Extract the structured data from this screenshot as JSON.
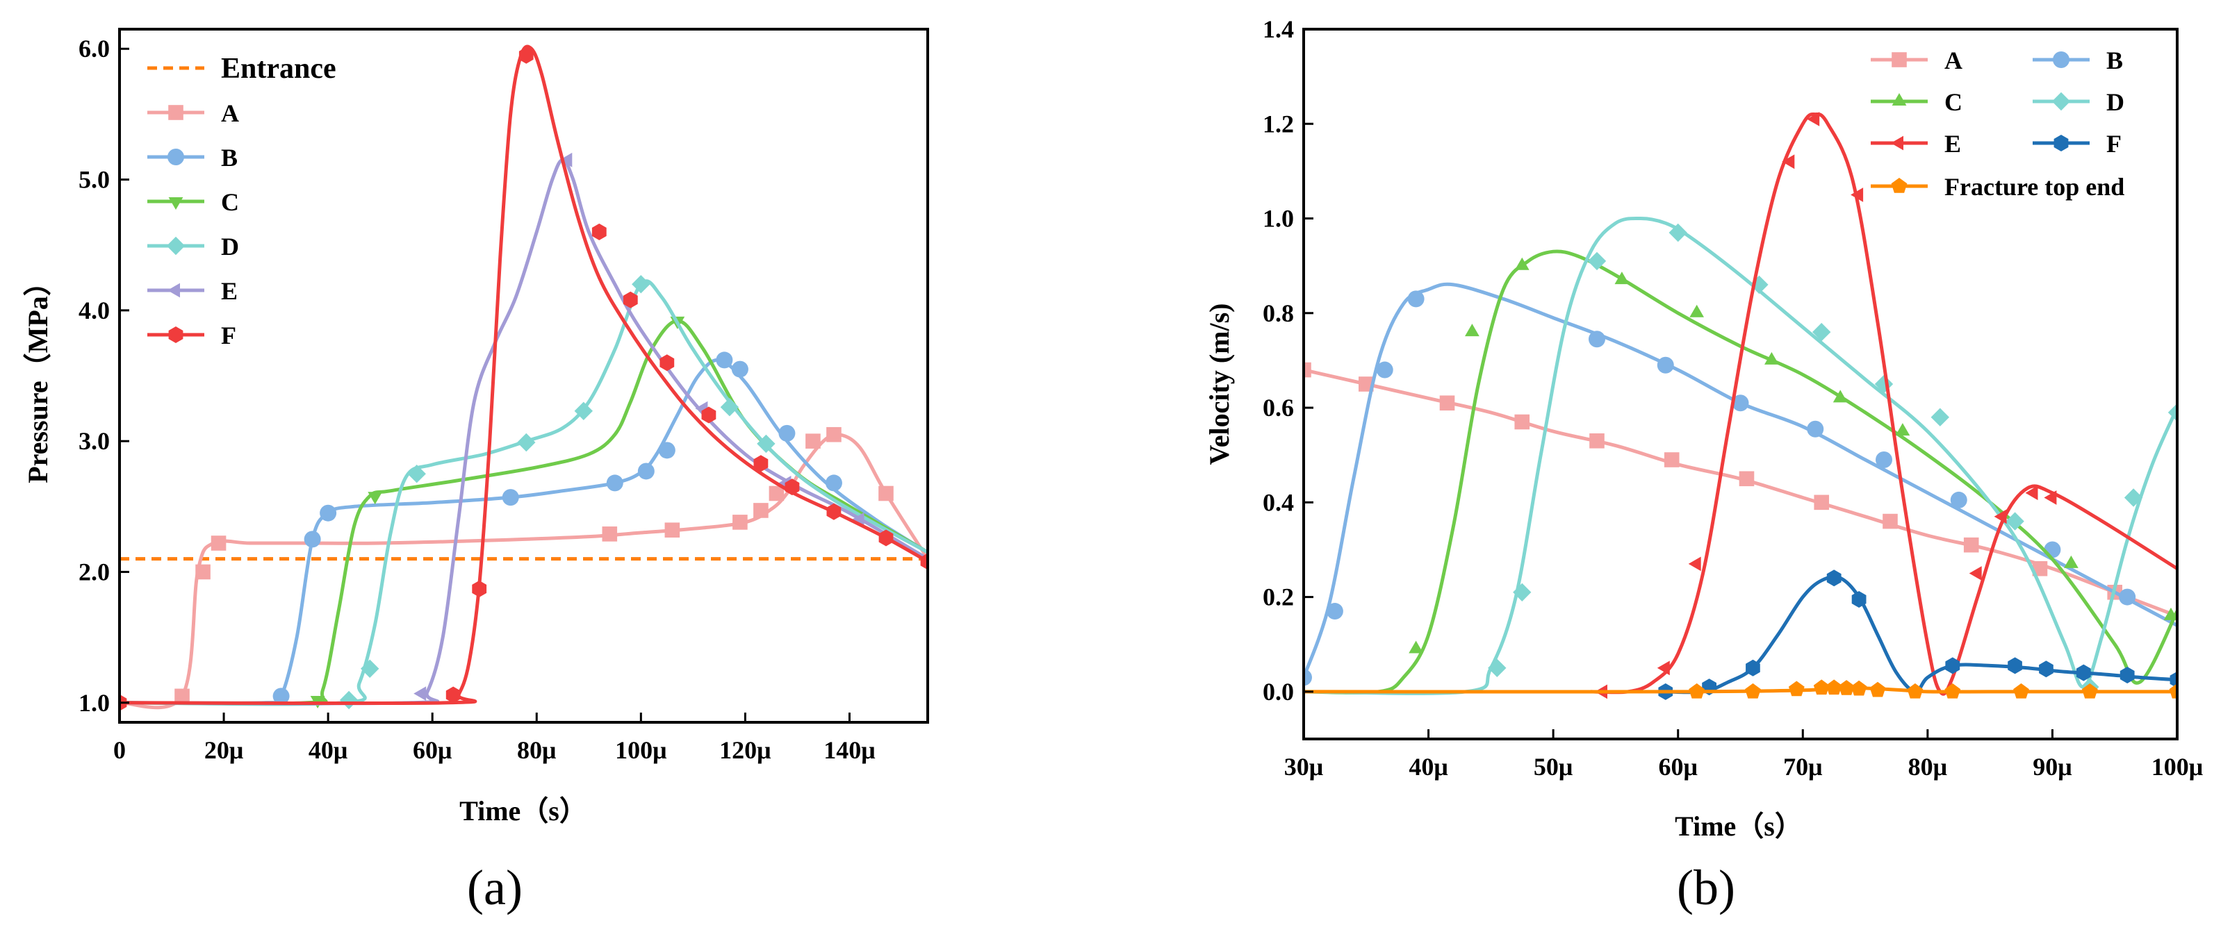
{
  "chart_data": [
    {
      "type": "line",
      "panel": "a",
      "caption": "(a)",
      "title": "",
      "xlabel": "Time（s）",
      "ylabel": "Pressure（MPa）",
      "xlim": [
        0,
        155
      ],
      "ylim": [
        0.85,
        6.15
      ],
      "xticks": [
        0,
        20,
        40,
        60,
        80,
        100,
        120,
        140
      ],
      "xtick_labels": [
        "0",
        "20μ",
        "40μ",
        "60μ",
        "80μ",
        "100μ",
        "120μ",
        "140μ"
      ],
      "yticks": [
        1,
        2,
        3,
        4,
        5,
        6
      ],
      "ytick_labels": [
        "1.0",
        "2.0",
        "3.0",
        "4.0",
        "5.0",
        "6.0"
      ],
      "reference": {
        "name": "Entrance",
        "value": 2.1,
        "color": "#FF7F0E"
      },
      "series": [
        {
          "name": "A",
          "color": "#F4A3A3",
          "marker": "square",
          "x": [
            0,
            12,
            15,
            18,
            25,
            35,
            50,
            70,
            90,
            100,
            110,
            120,
            125,
            128,
            131,
            135,
            138,
            142,
            147,
            155
          ],
          "y": [
            1.0,
            1.05,
            2.0,
            2.22,
            2.22,
            2.22,
            2.22,
            2.24,
            2.27,
            2.3,
            2.33,
            2.38,
            2.48,
            2.6,
            2.8,
            3.0,
            3.05,
            2.95,
            2.6,
            2.1
          ],
          "marker_x": [
            12,
            16,
            19,
            94,
            106,
            119,
            123,
            126,
            133,
            137,
            147
          ],
          "marker_y": [
            1.05,
            2.0,
            2.22,
            2.29,
            2.32,
            2.38,
            2.47,
            2.6,
            3.0,
            3.05,
            2.6
          ]
        },
        {
          "name": "B",
          "color": "#7FB2E5",
          "marker": "circle",
          "x": [
            0,
            28,
            31,
            34,
            37,
            40,
            45,
            60,
            75,
            85,
            95,
            100,
            103,
            107,
            111,
            115,
            120,
            127,
            135,
            145,
            155
          ],
          "y": [
            1.0,
            1.0,
            1.05,
            1.5,
            2.25,
            2.45,
            2.5,
            2.53,
            2.57,
            2.62,
            2.68,
            2.76,
            2.9,
            3.2,
            3.5,
            3.62,
            3.45,
            3.05,
            2.7,
            2.4,
            2.15
          ],
          "marker_x": [
            31,
            37,
            40,
            75,
            95,
            101,
            105,
            116,
            119,
            128,
            137
          ],
          "marker_y": [
            1.05,
            2.25,
            2.45,
            2.57,
            2.68,
            2.77,
            2.93,
            3.62,
            3.55,
            3.06,
            2.68
          ]
        },
        {
          "name": "C",
          "color": "#6FCB4A",
          "marker": "triangle-down",
          "x": [
            0,
            36,
            39,
            42,
            45,
            48,
            52,
            65,
            80,
            90,
            95,
            98,
            102,
            107,
            112,
            120,
            130,
            140,
            155
          ],
          "y": [
            1.0,
            1.0,
            1.1,
            1.7,
            2.35,
            2.58,
            2.62,
            2.7,
            2.8,
            2.9,
            3.05,
            3.3,
            3.7,
            3.92,
            3.7,
            3.15,
            2.75,
            2.5,
            2.15
          ],
          "marker_x": [
            38,
            49,
            107
          ],
          "marker_y": [
            1.02,
            2.58,
            3.92
          ]
        },
        {
          "name": "D",
          "color": "#7FD6D1",
          "marker": "diamond",
          "x": [
            0,
            43,
            46,
            49,
            52,
            55,
            60,
            70,
            78,
            85,
            90,
            95,
            100,
            104,
            110,
            118,
            127,
            137,
            155
          ],
          "y": [
            1.0,
            1.0,
            1.15,
            1.6,
            2.3,
            2.73,
            2.82,
            2.9,
            3.0,
            3.1,
            3.3,
            3.7,
            4.2,
            4.1,
            3.7,
            3.25,
            2.85,
            2.55,
            2.15
          ],
          "marker_x": [
            44,
            48,
            57,
            78,
            89,
            100,
            117,
            124
          ],
          "marker_y": [
            1.02,
            1.26,
            2.75,
            2.99,
            3.23,
            4.2,
            3.26,
            2.98
          ]
        },
        {
          "name": "E",
          "color": "#A29BD6",
          "marker": "triangle-left",
          "x": [
            0,
            56,
            59,
            62,
            65,
            68,
            72,
            76,
            80,
            83,
            85,
            87,
            90,
            95,
            100,
            110,
            120,
            130,
            140,
            155
          ],
          "y": [
            1.0,
            1.0,
            1.08,
            1.5,
            2.4,
            3.3,
            3.75,
            4.1,
            4.6,
            5.0,
            5.15,
            5.0,
            4.6,
            4.2,
            3.85,
            3.3,
            2.9,
            2.65,
            2.45,
            2.1
          ],
          "marker_x": [
            58,
            86,
            112,
            128,
            142
          ],
          "marker_y": [
            1.07,
            5.15,
            3.25,
            2.68,
            2.4
          ]
        },
        {
          "name": "F",
          "color": "#F03C3C",
          "marker": "hexagon",
          "x": [
            0,
            63,
            65,
            67,
            69,
            71,
            73,
            75,
            77,
            79,
            81,
            84,
            88,
            92,
            97,
            103,
            110,
            118,
            128,
            138,
            147,
            155
          ],
          "y": [
            1.0,
            1.0,
            1.06,
            1.3,
            1.9,
            3.0,
            4.4,
            5.5,
            5.95,
            6.0,
            5.8,
            5.3,
            4.7,
            4.25,
            3.9,
            3.55,
            3.2,
            2.9,
            2.63,
            2.44,
            2.26,
            2.08
          ],
          "marker_x": [
            0,
            64,
            69,
            78,
            92,
            98,
            105,
            113,
            123,
            129,
            137,
            147,
            155
          ],
          "marker_y": [
            1.0,
            1.06,
            1.87,
            5.95,
            4.6,
            4.08,
            3.6,
            3.2,
            2.83,
            2.65,
            2.46,
            2.26,
            2.08
          ]
        }
      ],
      "legend": {
        "placement": "top-left",
        "entries": [
          "Entrance",
          "A",
          "B",
          "C",
          "D",
          "E",
          "F"
        ]
      }
    },
    {
      "type": "line",
      "panel": "b",
      "caption": "(b)",
      "title": "",
      "xlabel": "Time（s）",
      "ylabel": "Velocity (m/s)",
      "xlim": [
        30,
        100
      ],
      "ylim": [
        -0.1,
        1.4
      ],
      "xticks": [
        30,
        40,
        50,
        60,
        70,
        80,
        90,
        100
      ],
      "xtick_labels": [
        "30μ",
        "40μ",
        "50μ",
        "60μ",
        "70μ",
        "80μ",
        "90μ",
        "100μ"
      ],
      "yticks": [
        0.0,
        0.2,
        0.4,
        0.6,
        0.8,
        1.0,
        1.2,
        1.4
      ],
      "ytick_labels": [
        "0.0",
        "0.2",
        "0.4",
        "0.6",
        "0.8",
        "1.0",
        "1.2",
        "1.4"
      ],
      "series": [
        {
          "name": "A",
          "color": "#F4A3A3",
          "marker": "square",
          "x": [
            30,
            35,
            40,
            45,
            50,
            55,
            60,
            65,
            70,
            75,
            80,
            85,
            90,
            95,
            100
          ],
          "y": [
            0.68,
            0.65,
            0.62,
            0.59,
            0.55,
            0.52,
            0.48,
            0.45,
            0.41,
            0.37,
            0.33,
            0.3,
            0.26,
            0.21,
            0.16
          ],
          "marker_x": [
            30,
            35,
            41.5,
            47.5,
            53.5,
            59.5,
            65.5,
            71.5,
            77,
            83.5,
            89,
            95
          ],
          "marker_y": [
            0.68,
            0.65,
            0.61,
            0.57,
            0.53,
            0.49,
            0.45,
            0.4,
            0.36,
            0.31,
            0.26,
            0.21
          ]
        },
        {
          "name": "B",
          "color": "#7FB2E5",
          "marker": "circle",
          "x": [
            30,
            32,
            34,
            36,
            38,
            40,
            42,
            46,
            50,
            55,
            60,
            65,
            70,
            75,
            80,
            85,
            90,
            95,
            100
          ],
          "y": [
            0.03,
            0.18,
            0.45,
            0.7,
            0.82,
            0.85,
            0.86,
            0.83,
            0.79,
            0.74,
            0.68,
            0.61,
            0.56,
            0.49,
            0.42,
            0.35,
            0.28,
            0.21,
            0.14
          ],
          "marker_x": [
            30,
            32.5,
            36.5,
            39,
            53.5,
            59,
            65,
            71,
            76.5,
            82.5,
            90,
            96
          ],
          "marker_y": [
            0.03,
            0.17,
            0.68,
            0.83,
            0.745,
            0.69,
            0.61,
            0.555,
            0.49,
            0.405,
            0.3,
            0.2
          ]
        },
        {
          "name": "C",
          "color": "#6FCB4A",
          "marker": "triangle-up",
          "x": [
            30,
            36,
            38,
            40,
            42,
            44,
            46,
            48,
            50,
            52,
            55,
            60,
            65,
            70,
            75,
            80,
            85,
            90,
            95,
            97,
            100
          ],
          "y": [
            0.0,
            0.0,
            0.03,
            0.12,
            0.35,
            0.65,
            0.85,
            0.91,
            0.93,
            0.92,
            0.88,
            0.8,
            0.73,
            0.67,
            0.59,
            0.5,
            0.4,
            0.28,
            0.1,
            0.02,
            0.17
          ],
          "marker_x": [
            39,
            43.5,
            47.5,
            55.5,
            61.5,
            67.5,
            73,
            78,
            91.5,
            99.5
          ],
          "marker_y": [
            0.09,
            0.76,
            0.9,
            0.87,
            0.8,
            0.7,
            0.62,
            0.55,
            0.27,
            0.16
          ]
        },
        {
          "name": "D",
          "color": "#7FD6D1",
          "marker": "diamond",
          "x": [
            30,
            43,
            45,
            47,
            49,
            51,
            53,
            55,
            57,
            59,
            61,
            65,
            70,
            75,
            80,
            85,
            88,
            91,
            92.5,
            94,
            96,
            98,
            100
          ],
          "y": [
            0.0,
            0.0,
            0.05,
            0.2,
            0.5,
            0.78,
            0.93,
            0.99,
            1.0,
            0.99,
            0.96,
            0.88,
            0.77,
            0.66,
            0.55,
            0.4,
            0.28,
            0.1,
            0.01,
            0.12,
            0.32,
            0.48,
            0.6
          ],
          "marker_x": [
            45.5,
            47.5,
            53.5,
            60,
            66.5,
            71.5,
            76.5,
            81,
            87,
            93,
            96.5,
            100
          ],
          "marker_y": [
            0.05,
            0.21,
            0.91,
            0.97,
            0.86,
            0.76,
            0.65,
            0.58,
            0.36,
            0.01,
            0.41,
            0.59
          ]
        },
        {
          "name": "E",
          "color": "#F03C3C",
          "marker": "triangle-left",
          "x": [
            53,
            56,
            58,
            60,
            62,
            64,
            66,
            68,
            70,
            71,
            72,
            74,
            76,
            78,
            80,
            81,
            82,
            84,
            86,
            88,
            90,
            94,
            100
          ],
          "y": [
            0.0,
            0.0,
            0.02,
            0.08,
            0.25,
            0.55,
            0.85,
            1.08,
            1.2,
            1.22,
            1.2,
            1.08,
            0.78,
            0.42,
            0.1,
            0.0,
            0.03,
            0.2,
            0.36,
            0.43,
            0.42,
            0.36,
            0.26
          ],
          "marker_x": [
            54,
            59,
            61.5,
            69,
            71,
            74.5,
            84,
            86,
            88.5,
            90
          ],
          "marker_y": [
            0.0,
            0.05,
            0.27,
            1.12,
            1.21,
            1.05,
            0.25,
            0.37,
            0.42,
            0.41
          ]
        },
        {
          "name": "F",
          "color": "#1E6FB4",
          "marker": "hexagon",
          "x": [
            59,
            62,
            64,
            66,
            68,
            70,
            71.5,
            73,
            74.5,
            76,
            77.5,
            79,
            80,
            82,
            85,
            88,
            91,
            94,
            97,
            100
          ],
          "y": [
            0.0,
            0.0,
            0.02,
            0.05,
            0.12,
            0.2,
            0.235,
            0.24,
            0.2,
            0.12,
            0.04,
            0.0,
            0.03,
            0.055,
            0.055,
            0.05,
            0.042,
            0.037,
            0.03,
            0.025
          ],
          "marker_x": [
            59,
            62.5,
            66,
            72.5,
            74.5,
            82,
            87,
            89.5,
            92.5,
            96,
            100
          ],
          "marker_y": [
            0.0,
            0.01,
            0.05,
            0.24,
            0.195,
            0.055,
            0.055,
            0.048,
            0.04,
            0.035,
            0.025
          ]
        },
        {
          "name": "Fracture top end",
          "color": "#FF8C00",
          "marker": "pentagon",
          "x": [
            30,
            60,
            70,
            72,
            74,
            76,
            78,
            80,
            85,
            90,
            100
          ],
          "y": [
            0.0,
            0.0,
            0.003,
            0.007,
            0.008,
            0.006,
            0.003,
            0.0,
            0.0,
            0.0,
            0.0
          ],
          "marker_x": [
            61.5,
            66,
            69.5,
            71.5,
            72.5,
            73.5,
            74.5,
            76,
            79,
            82,
            87.5,
            93,
            100
          ],
          "marker_y": [
            0.0,
            0.0,
            0.005,
            0.008,
            0.008,
            0.007,
            0.006,
            0.003,
            0.0,
            0.0,
            0.0,
            0.0,
            0.0
          ]
        }
      ],
      "legend": {
        "placement": "top-right",
        "entries": [
          "A",
          "B",
          "C",
          "D",
          "E",
          "F",
          "Fracture top end"
        ]
      }
    }
  ]
}
